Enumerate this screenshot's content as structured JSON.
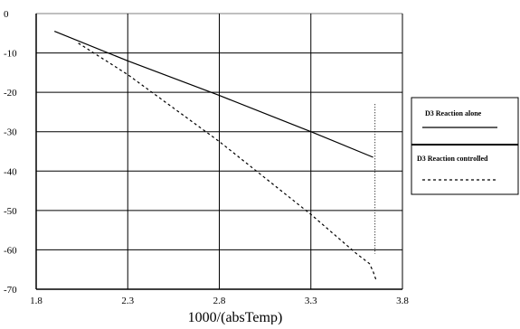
{
  "chart_data": {
    "type": "line",
    "title": "",
    "xlabel": "1000/(absTemp)",
    "ylabel": "",
    "xlim": [
      1.8,
      3.8
    ],
    "ylim": [
      -70,
      0
    ],
    "x_ticks": [
      "1.8",
      "2.3",
      "2.8",
      "3.3",
      "3.8"
    ],
    "y_ticks": [
      "0",
      "-10",
      "-20",
      "-30",
      "-40",
      "-50",
      "-60",
      "-70"
    ],
    "grid": true,
    "legend_position": "right",
    "series": [
      {
        "name": "D3 Reaction alone",
        "style": "solid",
        "color": "#000000",
        "x": [
          1.9,
          2.3,
          2.8,
          3.3,
          3.64
        ],
        "y": [
          -4.5,
          -12.0,
          -20.8,
          -30.0,
          -36.5
        ]
      },
      {
        "name": "D3 Reaction controlled",
        "style": "dashed",
        "color": "#000000",
        "x": [
          2.03,
          2.3,
          2.8,
          3.3,
          3.55,
          3.62,
          3.64,
          3.655
        ],
        "y": [
          -7.5,
          -15.5,
          -32.5,
          -51.0,
          -61.0,
          -63.5,
          -65.5,
          -67.5
        ]
      }
    ]
  }
}
